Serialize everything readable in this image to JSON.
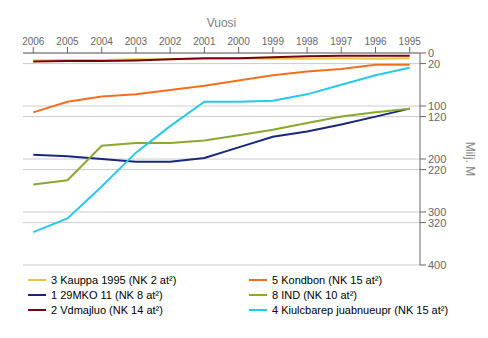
{
  "chart_data": {
    "type": "line",
    "xlabel": "Vuosi",
    "ylabel": "Milj. M",
    "x": [
      1995,
      1996,
      1997,
      1998,
      1999,
      2000,
      2001,
      2002,
      2003,
      2004,
      2005,
      2006
    ],
    "series": [
      {
        "name": "3 Kauppa 1995 (NK 2 at²)",
        "color": "#e8c840",
        "values": [
          10,
          11,
          10,
          11,
          11,
          10,
          11,
          12,
          12,
          13,
          13,
          14
        ]
      },
      {
        "name": "5 Kondbon (NK 15 at²)",
        "color": "#f07020",
        "values": [
          22,
          22,
          30,
          35,
          42,
          52,
          62,
          70,
          78,
          82,
          92,
          112
        ]
      },
      {
        "name": "1 29MKO 11 (NK 8 at²)",
        "color": "#182878",
        "values": [
          105,
          120,
          135,
          148,
          158,
          178,
          198,
          205,
          205,
          200,
          195,
          192
        ]
      },
      {
        "name": "8 IND (NK 10 at²)",
        "color": "#88a830",
        "values": [
          105,
          112,
          120,
          132,
          145,
          155,
          165,
          170,
          170,
          175,
          240,
          248
        ]
      },
      {
        "name": "2 Vdmajluo (NK 14 at²)",
        "color": "#780010",
        "values": [
          5,
          5,
          5,
          6,
          8,
          10,
          10,
          12,
          14,
          15,
          15,
          16
        ]
      },
      {
        "name": "4 Kiulcbarep juabnueupr (NK 15 at²)",
        "color": "#28c8e8",
        "values": [
          28,
          42,
          60,
          78,
          90,
          92,
          92,
          138,
          188,
          252,
          312,
          338
        ]
      }
    ],
    "xlim": [
      2006.3,
      1994.7
    ],
    "xticks": [
      1995,
      1996,
      1997,
      1998,
      1999,
      2000,
      2001,
      2002,
      2003,
      2004,
      2005,
      2006
    ],
    "ylim": [
      400,
      0
    ],
    "yticks": [
      0,
      20,
      100,
      120,
      200,
      220,
      300,
      320,
      400
    ],
    "grid": true,
    "legend": "bottom"
  }
}
